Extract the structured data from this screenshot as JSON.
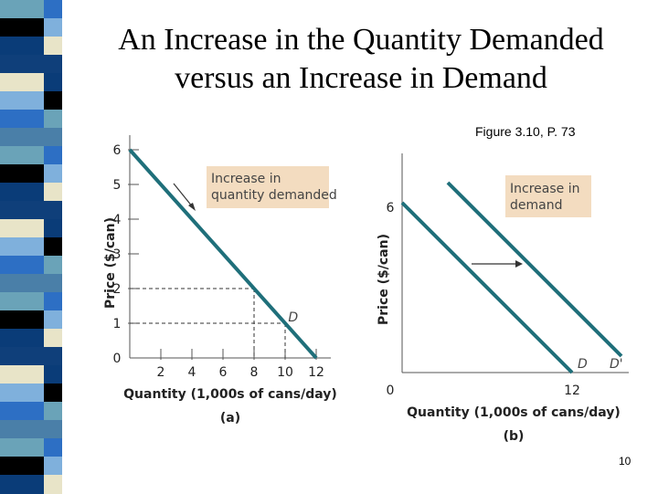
{
  "slide": {
    "title_line1": "An Increase in the Quantity Demanded",
    "title_line2": "versus an Increase in Demand",
    "figure_ref": "Figure 3.10, P. 73",
    "page_number": "10"
  },
  "colors": {
    "demand_line": "#1f6f7a",
    "note_box": "#f3dcc0",
    "strip": [
      "#6aa3b8",
      "#0f3f7a",
      "#2d6fc4",
      "#000000",
      "#e8e4c8",
      "#4a7fa8",
      "#0a3c78",
      "#7fb0dc"
    ]
  },
  "panel_a": {
    "title": "(a)",
    "ylabel": "Price ($/can)",
    "xlabel": "Quantity (1,000s of cans/day)",
    "y_ticks": [
      "0",
      "1",
      "2",
      "3",
      "4",
      "5",
      "6"
    ],
    "x_ticks": [
      "2",
      "4",
      "6",
      "8",
      "10",
      "12"
    ],
    "curve_label": "D",
    "annotation": [
      "Increase in",
      "quantity demanded"
    ]
  },
  "panel_b": {
    "title": "(b)",
    "ylabel": "Price ($/can)",
    "xlabel": "Quantity (1,000s of cans/day)",
    "y_ticks": [
      "0",
      "6"
    ],
    "x_ticks": [
      "12"
    ],
    "curve_labels": [
      "D",
      "D'"
    ],
    "annotation": [
      "Increase in",
      "demand"
    ]
  },
  "chart_data": [
    {
      "type": "line",
      "title": "(a)",
      "xlabel": "Quantity (1,000s of cans/day)",
      "ylabel": "Price ($/can)",
      "xlim": [
        0,
        12
      ],
      "ylim": [
        0,
        6
      ],
      "series": [
        {
          "name": "D",
          "x": [
            0,
            12
          ],
          "y": [
            6,
            0
          ]
        }
      ],
      "reference_points": [
        {
          "x": 8,
          "y": 2
        },
        {
          "x": 10,
          "y": 1
        }
      ]
    },
    {
      "type": "line",
      "title": "(b)",
      "xlabel": "Quantity (1,000s of cans/day)",
      "ylabel": "Price ($/can)",
      "series": [
        {
          "name": "D"
        },
        {
          "name": "D'"
        }
      ]
    }
  ]
}
